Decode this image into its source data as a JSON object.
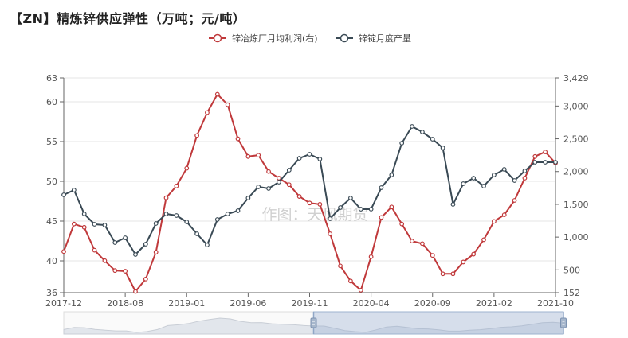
{
  "header": {
    "title": "【ZN】精炼锌供应弹性（万吨；元/吨）"
  },
  "watermark": "作图：天风期货",
  "chart_data": {
    "type": "line",
    "title": "【ZN】精炼锌供应弹性（万吨；元/吨）",
    "x_tick_labels": [
      "2017-12",
      "2018-08",
      "2019-01",
      "2019-06",
      "2019-11",
      "2020-04",
      "2020-09",
      "2021-02",
      "2021-10"
    ],
    "y_left": {
      "min": 36,
      "max": 63,
      "ticks": [
        "63",
        "60",
        "55",
        "50",
        "45",
        "40",
        "36"
      ]
    },
    "y_right": {
      "min": 152,
      "max": 3429,
      "ticks": [
        "3,429",
        "3,000",
        "2,500",
        "2,000",
        "1,500",
        "1,000",
        "500",
        "152"
      ]
    },
    "legend_position": "top-center",
    "grid": "horizontal",
    "datazoom": {
      "start": 0.5,
      "end": 1.0
    },
    "series": [
      {
        "name": "锌冶炼厂月均利润(右)",
        "axis": "right",
        "color": "#c0393b",
        "values": [
          780,
          1200,
          1150,
          800,
          640,
          490,
          480,
          170,
          360,
          770,
          1600,
          1780,
          2050,
          2550,
          2900,
          3180,
          3020,
          2500,
          2230,
          2250,
          2000,
          1900,
          1800,
          1620,
          1520,
          1500,
          1050,
          560,
          330,
          190,
          700,
          1300,
          1460,
          1200,
          940,
          900,
          720,
          440,
          440,
          620,
          740,
          960,
          1240,
          1340,
          1560,
          1900,
          2230,
          2300,
          2130
        ]
      },
      {
        "name": "锌锭月度产量",
        "axis": "left",
        "color": "#3a4a55",
        "values": [
          48.3,
          48.9,
          45.9,
          44.6,
          44.5,
          42.3,
          42.9,
          40.8,
          42.1,
          44.7,
          45.9,
          45.7,
          44.9,
          43.4,
          42.0,
          45.2,
          45.9,
          46.3,
          47.9,
          49.3,
          49.1,
          49.9,
          51.4,
          52.9,
          53.4,
          52.8,
          45.3,
          46.7,
          47.9,
          46.5,
          46.5,
          49.2,
          50.8,
          54.8,
          56.9,
          56.2,
          55.3,
          54.2,
          47.1,
          49.7,
          50.4,
          49.4,
          50.8,
          51.5,
          50.1,
          51.3,
          52.4,
          52.4,
          52.4
        ]
      }
    ]
  }
}
